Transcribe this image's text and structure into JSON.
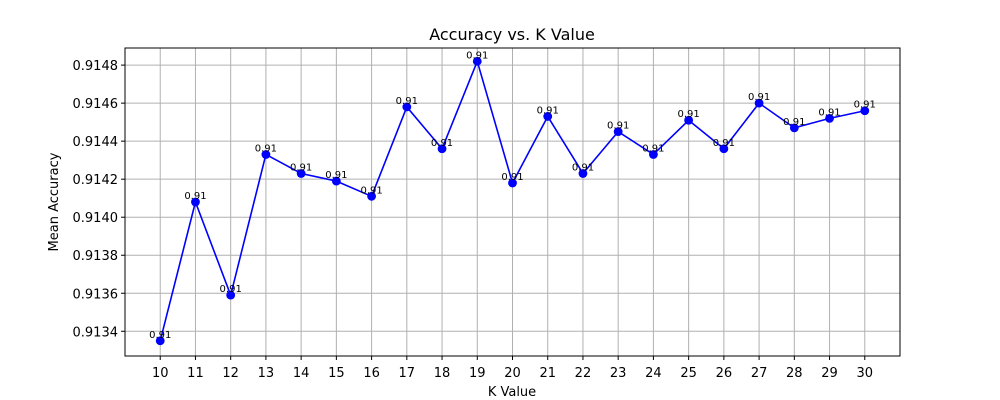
{
  "chart_data": {
    "type": "line",
    "title": "Accuracy vs. K Value",
    "xlabel": "K Value",
    "ylabel": "Mean Accuracy",
    "x": [
      10,
      11,
      12,
      13,
      14,
      15,
      16,
      17,
      18,
      19,
      20,
      21,
      22,
      23,
      24,
      25,
      26,
      27,
      28,
      29,
      30
    ],
    "series": [
      {
        "name": "Mean Accuracy",
        "color": "#0000ff",
        "marker": "circle",
        "values": [
          0.91335,
          0.91408,
          0.91359,
          0.91433,
          0.91423,
          0.91419,
          0.91411,
          0.91458,
          0.91436,
          0.91482,
          0.91418,
          0.91453,
          0.91423,
          0.91445,
          0.91433,
          0.91451,
          0.91436,
          0.9146,
          0.91447,
          0.91452,
          0.91456
        ],
        "labels": [
          "0.91",
          "0.91",
          "0.91",
          "0.91",
          "0.91",
          "0.91",
          "0.91",
          "0.91",
          "0.91",
          "0.91",
          "0.91",
          "0.91",
          "0.91",
          "0.91",
          "0.91",
          "0.91",
          "0.91",
          "0.91",
          "0.91",
          "0.91",
          "0.91"
        ]
      }
    ],
    "xlim": [
      9.0,
      31.0
    ],
    "ylim": [
      0.91327,
      0.91489
    ],
    "yticks": [
      0.9134,
      0.9136,
      0.9138,
      0.914,
      0.9142,
      0.9144,
      0.9146,
      0.9148
    ],
    "ytick_labels": [
      "0.9134",
      "0.9136",
      "0.9138",
      "0.9140",
      "0.9142",
      "0.9144",
      "0.9146",
      "0.9148"
    ],
    "xtick_labels": [
      "10",
      "11",
      "12",
      "13",
      "14",
      "15",
      "16",
      "17",
      "18",
      "19",
      "20",
      "21",
      "22",
      "23",
      "24",
      "25",
      "26",
      "27",
      "28",
      "29",
      "30"
    ],
    "grid": true,
    "legend": "none"
  }
}
